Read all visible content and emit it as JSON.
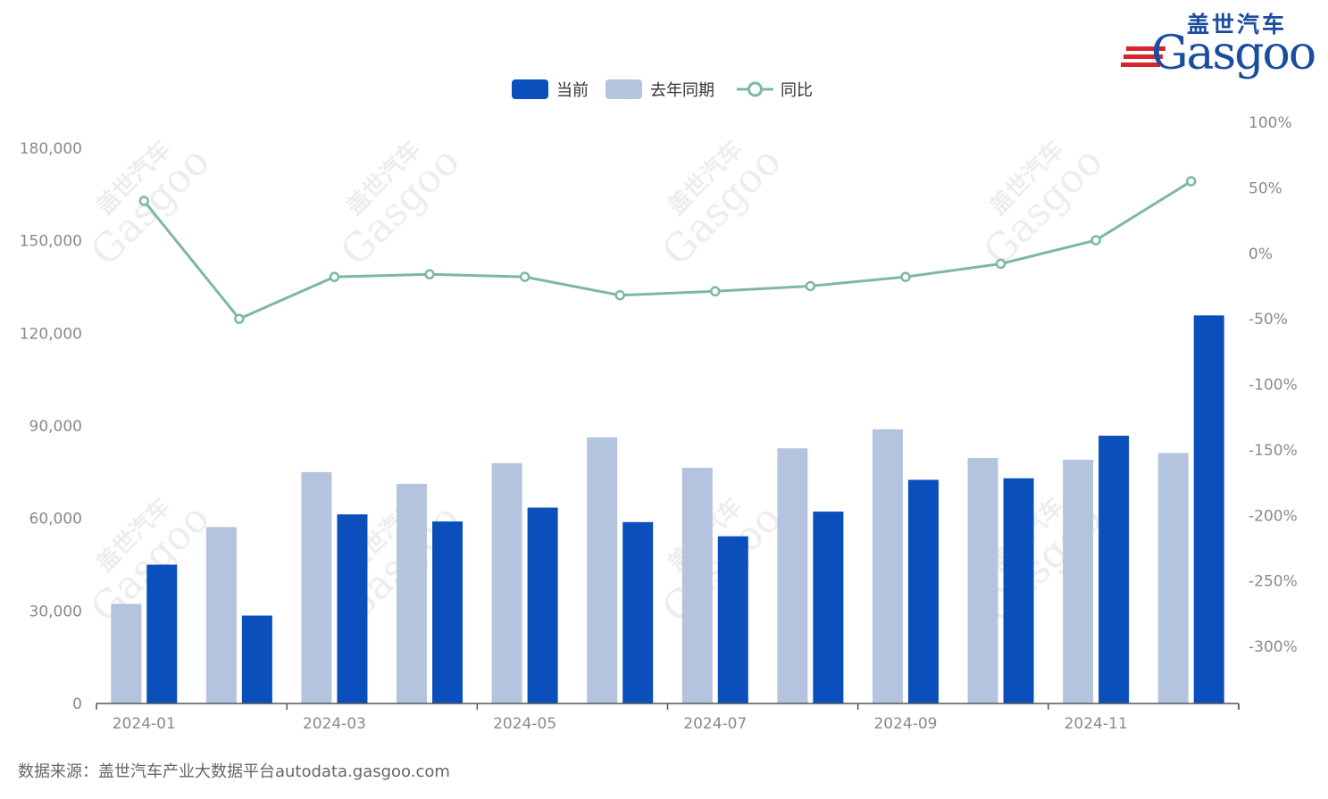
{
  "logo": {
    "cn": "盖世汽车",
    "en": "Gasgoo"
  },
  "watermark": {
    "en": "Gasgoo",
    "cn": "盖世汽车"
  },
  "source": "数据来源：盖世汽车产业大数据平台autodata.gasgoo.com",
  "colors": {
    "current": "#0a4fbb",
    "last_year": "#b4c4df",
    "yoy": "#7db8a0",
    "axis": "#555555",
    "tick": "#8a8a8a"
  },
  "chart_data": {
    "type": "bar",
    "title": "",
    "legend": [
      "当前",
      "去年同期",
      "同比"
    ],
    "legend_position": "top-center",
    "categories": [
      "2024-01",
      "2024-02",
      "2024-03",
      "2024-04",
      "2024-05",
      "2024-06",
      "2024-07",
      "2024-08",
      "2024-09",
      "2024-10",
      "2024-11",
      "2024-12"
    ],
    "x_tick_labels": [
      "2024-01",
      "2024-03",
      "2024-05",
      "2024-07",
      "2024-09",
      "2024-11"
    ],
    "series": [
      {
        "name": "去年同期",
        "type": "bar",
        "axis": "left",
        "values": [
          32300,
          57200,
          75000,
          71200,
          77900,
          86300,
          76400,
          82700,
          88900,
          79600,
          79000,
          81200
        ]
      },
      {
        "name": "当前",
        "type": "bar",
        "axis": "left",
        "values": [
          45000,
          28500,
          61300,
          59000,
          63500,
          58800,
          54200,
          62200,
          72500,
          73000,
          86800,
          125800
        ]
      },
      {
        "name": "同比",
        "type": "line",
        "axis": "right",
        "values": [
          40,
          -50,
          -18,
          -16,
          -18,
          -32,
          -29,
          -25,
          -18,
          -8,
          10,
          55
        ]
      }
    ],
    "y_left": {
      "min": 0,
      "max": 180000,
      "ticks": [
        "0",
        "30,000",
        "60,000",
        "90,000",
        "120,000",
        "150,000",
        "180,000"
      ]
    },
    "y_right": {
      "min": -350,
      "max": 100,
      "ticks": [
        "-300%",
        "-250%",
        "-200%",
        "-150%",
        "-100%",
        "-50%",
        "0%",
        "50%",
        "100%"
      ]
    },
    "grid": false
  }
}
